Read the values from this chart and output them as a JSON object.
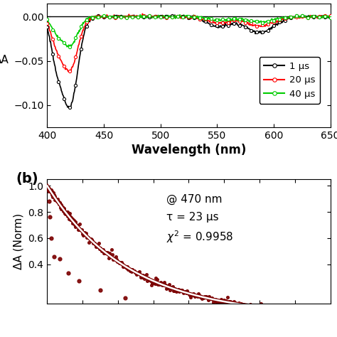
{
  "top_plot": {
    "xlim": [
      400,
      650
    ],
    "ylim": [
      -0.125,
      0.015
    ],
    "yticks": [
      0.0,
      -0.05,
      -0.1
    ],
    "xlabel": "Wavelength (nm)",
    "ylabel": "ΔA",
    "series_labels": [
      "1 μs",
      "20 μs",
      "40 μs"
    ],
    "series_colors": [
      "black",
      "red",
      "#00cc00"
    ]
  },
  "bottom_plot": {
    "ylabel": "ΔA (Norm)",
    "ylim": [
      0.1,
      1.05
    ],
    "yticks": [
      0.4,
      0.6,
      0.8,
      1.0
    ],
    "annotation_line1": "@ 470 nm",
    "annotation_line2": "τ = 23 μs",
    "annotation_line3": "χ² = 0.9958",
    "dot_color": "#7B0000",
    "line_color": "white",
    "tau": 23,
    "label_b": "(b)"
  },
  "background_color": "#ffffff",
  "xlabel_fontsize": 12,
  "ylabel_fontsize": 11,
  "tick_fontsize": 10
}
